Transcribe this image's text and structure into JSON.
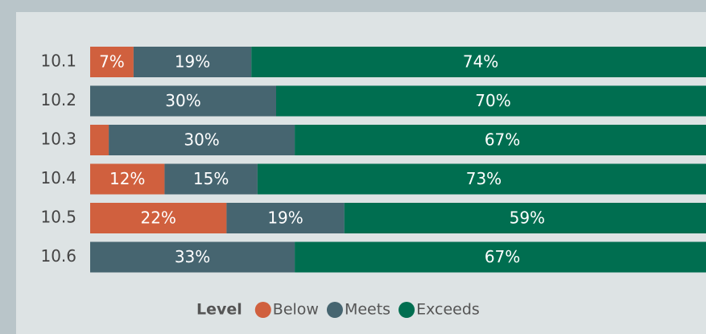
{
  "chart_data": {
    "type": "stacked-bar-horizontal",
    "categories": [
      "10.1",
      "10.2",
      "10.3",
      "10.4",
      "10.5",
      "10.6"
    ],
    "series": [
      {
        "name": "Below",
        "color": "#d0603e",
        "values": [
          7,
          0,
          3,
          12,
          22,
          0
        ],
        "value_labels": [
          "7%",
          null,
          null,
          "12%",
          "22%",
          null
        ]
      },
      {
        "name": "Meets",
        "color": "#466570",
        "values": [
          19,
          30,
          30,
          15,
          19,
          33
        ],
        "value_labels": [
          "19%",
          "30%",
          "30%",
          "15%",
          "19%",
          "33%"
        ]
      },
      {
        "name": "Exceeds",
        "color": "#006e50",
        "values": [
          74,
          70,
          67,
          73,
          59,
          67
        ],
        "value_labels": [
          "74%",
          "70%",
          "67%",
          "73%",
          "59%",
          "67%"
        ]
      }
    ],
    "legend_title": "Level",
    "legend": "bottom"
  }
}
